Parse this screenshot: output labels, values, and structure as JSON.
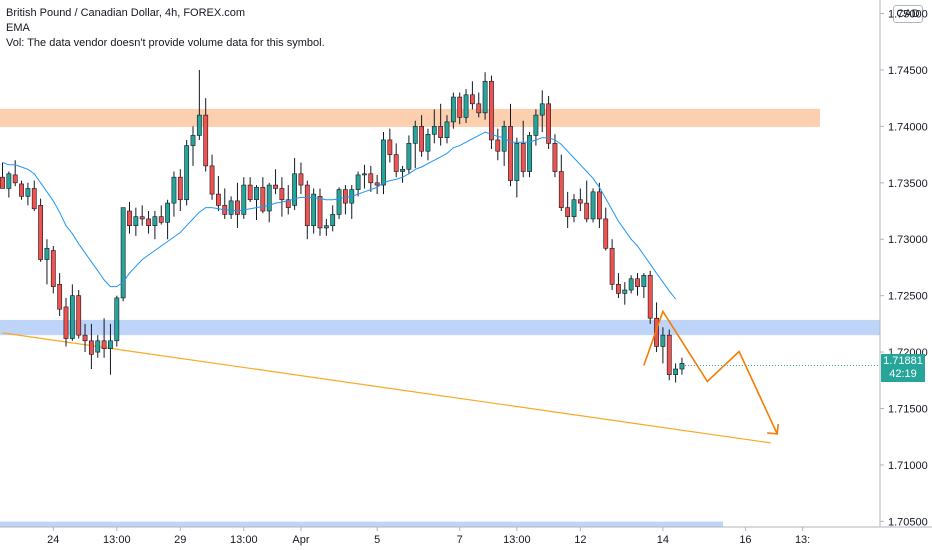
{
  "header": {
    "title": "British Pound / Canadian Dollar, 4h, FOREX.com",
    "indicator": "EMA",
    "volume_note": "Vol: The data vendor doesn't provide volume data for this symbol."
  },
  "currency_label": "CAD",
  "current_price": {
    "price": "1.71881",
    "countdown": "42:19"
  },
  "colors": {
    "up": "#26a69a",
    "down": "#ef5350",
    "wick": "#131722",
    "ema": "#2196f3",
    "resistance_zone": "#fbc8a0",
    "support_zone": "#b3cdf8",
    "trendline": "#f9a825",
    "projection": "#f57c00"
  },
  "chart_data": {
    "type": "candlestick",
    "y_axis": {
      "range": [
        1.7045,
        1.7512
      ],
      "ticks": [
        "1.75000",
        "1.74500",
        "1.74000",
        "1.73500",
        "1.73000",
        "1.72500",
        "1.72000",
        "1.71500",
        "1.71000",
        "1.70500"
      ],
      "tick_values": [
        1.75,
        1.745,
        1.74,
        1.735,
        1.73,
        1.725,
        1.72,
        1.715,
        1.71,
        1.705
      ]
    },
    "x_axis": {
      "labels": [
        "24",
        "13:00",
        "29",
        "13:00",
        "Apr",
        "5",
        "7",
        "13:00",
        "12",
        "14",
        "16",
        "13:"
      ],
      "label_bar_index": [
        8,
        18,
        28,
        38,
        47,
        59,
        72,
        81,
        91,
        104,
        117,
        126
      ]
    },
    "candles": [
      [
        1.7355,
        1.7368,
        1.7345,
        1.7345
      ],
      [
        1.7345,
        1.736,
        1.7337,
        1.7358
      ],
      [
        1.7357,
        1.737,
        1.7347,
        1.735
      ],
      [
        1.7349,
        1.7352,
        1.7335,
        1.7338
      ],
      [
        1.7338,
        1.735,
        1.733,
        1.7345
      ],
      [
        1.7345,
        1.7352,
        1.7325,
        1.7327
      ],
      [
        1.733,
        1.7336,
        1.728,
        1.7282
      ],
      [
        1.7282,
        1.73,
        1.726,
        1.7292
      ],
      [
        1.729,
        1.7294,
        1.7252,
        1.7258
      ],
      [
        1.726,
        1.727,
        1.7232,
        1.7238
      ],
      [
        1.724,
        1.7248,
        1.7205,
        1.7212
      ],
      [
        1.7212,
        1.726,
        1.721,
        1.725
      ],
      [
        1.725,
        1.7255,
        1.7212,
        1.7215
      ],
      [
        1.7215,
        1.7225,
        1.72,
        1.721
      ],
      [
        1.721,
        1.7225,
        1.7185,
        1.7198
      ],
      [
        1.72,
        1.7215,
        1.7195,
        1.721
      ],
      [
        1.721,
        1.723,
        1.7195,
        1.7203
      ],
      [
        1.7203,
        1.7225,
        1.718,
        1.721
      ],
      [
        1.721,
        1.725,
        1.7205,
        1.7248
      ],
      [
        1.7248,
        1.7328,
        1.7245,
        1.7328
      ],
      [
        1.7325,
        1.7333,
        1.7305,
        1.7312
      ],
      [
        1.7312,
        1.7328,
        1.7303,
        1.732
      ],
      [
        1.732,
        1.733,
        1.7312,
        1.7318
      ],
      [
        1.7318,
        1.7325,
        1.7305,
        1.7312
      ],
      [
        1.7312,
        1.7325,
        1.73,
        1.732
      ],
      [
        1.732,
        1.733,
        1.7313,
        1.7315
      ],
      [
        1.7315,
        1.7335,
        1.73,
        1.7332
      ],
      [
        1.7332,
        1.736,
        1.732,
        1.7355
      ],
      [
        1.7355,
        1.7362,
        1.7325,
        1.7335
      ],
      [
        1.7335,
        1.7388,
        1.733,
        1.7383
      ],
      [
        1.7383,
        1.74,
        1.7365,
        1.7392
      ],
      [
        1.7392,
        1.745,
        1.7388,
        1.741
      ],
      [
        1.741,
        1.7425,
        1.736,
        1.7365
      ],
      [
        1.7365,
        1.7375,
        1.7335,
        1.734
      ],
      [
        1.734,
        1.7356,
        1.7325,
        1.733
      ],
      [
        1.733,
        1.7345,
        1.7318,
        1.7322
      ],
      [
        1.7322,
        1.7338,
        1.7318,
        1.7334
      ],
      [
        1.7334,
        1.735,
        1.731,
        1.7322
      ],
      [
        1.7322,
        1.7355,
        1.7318,
        1.7348
      ],
      [
        1.7348,
        1.7355,
        1.7333,
        1.7335
      ],
      [
        1.7335,
        1.7348,
        1.7317,
        1.7346
      ],
      [
        1.7346,
        1.7355,
        1.7323,
        1.7325
      ],
      [
        1.7325,
        1.735,
        1.7315,
        1.7348
      ],
      [
        1.7348,
        1.7362,
        1.734,
        1.7345
      ],
      [
        1.7345,
        1.7355,
        1.732,
        1.7335
      ],
      [
        1.7335,
        1.7348,
        1.7322,
        1.7328
      ],
      [
        1.733,
        1.7372,
        1.7326,
        1.7358
      ],
      [
        1.7358,
        1.7368,
        1.734,
        1.7348
      ],
      [
        1.7348,
        1.7352,
        1.73,
        1.7312
      ],
      [
        1.7312,
        1.7345,
        1.7305,
        1.734
      ],
      [
        1.7338,
        1.7345,
        1.7303,
        1.731
      ],
      [
        1.731,
        1.7318,
        1.7303,
        1.7312
      ],
      [
        1.7312,
        1.733,
        1.7307,
        1.7322
      ],
      [
        1.7322,
        1.7346,
        1.7318,
        1.7344
      ],
      [
        1.7344,
        1.7348,
        1.7322,
        1.7332
      ],
      [
        1.7332,
        1.7348,
        1.7318,
        1.7344
      ],
      [
        1.7344,
        1.736,
        1.7338,
        1.7357
      ],
      [
        1.7357,
        1.7366,
        1.7345,
        1.7358
      ],
      [
        1.7358,
        1.7365,
        1.7342,
        1.735
      ],
      [
        1.735,
        1.7357,
        1.734,
        1.7348
      ],
      [
        1.7348,
        1.7395,
        1.734,
        1.7388
      ],
      [
        1.7388,
        1.7398,
        1.7368,
        1.7375
      ],
      [
        1.7375,
        1.7385,
        1.7355,
        1.736
      ],
      [
        1.736,
        1.7365,
        1.735,
        1.7362
      ],
      [
        1.7362,
        1.7392,
        1.7358,
        1.7385
      ],
      [
        1.7385,
        1.7405,
        1.7363,
        1.74
      ],
      [
        1.74,
        1.741,
        1.7373,
        1.7378
      ],
      [
        1.7378,
        1.7398,
        1.737,
        1.7393
      ],
      [
        1.7393,
        1.7415,
        1.7385,
        1.74
      ],
      [
        1.74,
        1.742,
        1.7383,
        1.739
      ],
      [
        1.739,
        1.741,
        1.7385,
        1.7404
      ],
      [
        1.7404,
        1.743,
        1.7398,
        1.7426
      ],
      [
        1.7426,
        1.743,
        1.7402,
        1.7408
      ],
      [
        1.7408,
        1.7433,
        1.7403,
        1.7428
      ],
      [
        1.7428,
        1.744,
        1.7415,
        1.742
      ],
      [
        1.742,
        1.743,
        1.7408,
        1.7412
      ],
      [
        1.7412,
        1.7448,
        1.7406,
        1.744
      ],
      [
        1.744,
        1.7445,
        1.738,
        1.7388
      ],
      [
        1.7388,
        1.7398,
        1.737,
        1.7378
      ],
      [
        1.7378,
        1.7405,
        1.7365,
        1.74
      ],
      [
        1.74,
        1.742,
        1.7347,
        1.7352
      ],
      [
        1.7352,
        1.739,
        1.7337,
        1.7385
      ],
      [
        1.7385,
        1.7405,
        1.7355,
        1.736
      ],
      [
        1.736,
        1.7395,
        1.7355,
        1.7392
      ],
      [
        1.7392,
        1.7415,
        1.7383,
        1.741
      ],
      [
        1.741,
        1.7432,
        1.7395,
        1.742
      ],
      [
        1.742,
        1.7427,
        1.738,
        1.7385
      ],
      [
        1.7385,
        1.7393,
        1.7355,
        1.736
      ],
      [
        1.736,
        1.7375,
        1.7325,
        1.7328
      ],
      [
        1.7328,
        1.7342,
        1.731,
        1.732
      ],
      [
        1.732,
        1.734,
        1.7315,
        1.7335
      ],
      [
        1.7335,
        1.7345,
        1.7325,
        1.7332
      ],
      [
        1.7332,
        1.7352,
        1.7315,
        1.7318
      ],
      [
        1.7318,
        1.7345,
        1.7315,
        1.7342
      ],
      [
        1.7342,
        1.735,
        1.731,
        1.7318
      ],
      [
        1.7318,
        1.7328,
        1.729,
        1.7292
      ],
      [
        1.7292,
        1.73,
        1.7255,
        1.726
      ],
      [
        1.726,
        1.727,
        1.7248,
        1.7252
      ],
      [
        1.7252,
        1.7262,
        1.7242,
        1.7255
      ],
      [
        1.7255,
        1.7268,
        1.7252,
        1.7265
      ],
      [
        1.7265,
        1.727,
        1.725,
        1.7258
      ],
      [
        1.7258,
        1.727,
        1.7248,
        1.7268
      ],
      [
        1.7268,
        1.7272,
        1.7225,
        1.723
      ],
      [
        1.723,
        1.7244,
        1.72,
        1.7205
      ],
      [
        1.7205,
        1.7222,
        1.719,
        1.7215
      ],
      [
        1.7215,
        1.722,
        1.7175,
        1.718
      ],
      [
        1.718,
        1.719,
        1.7173,
        1.7185
      ],
      [
        1.7185,
        1.7195,
        1.718,
        1.719
      ]
    ],
    "ema": [
      1.7368,
      1.7366,
      1.7366,
      1.7364,
      1.7362,
      1.7358,
      1.735,
      1.7342,
      1.7334,
      1.7324,
      1.7312,
      1.7305,
      1.7296,
      1.7288,
      1.728,
      1.7272,
      1.7264,
      1.7258,
      1.7258,
      1.7262,
      1.727,
      1.7276,
      1.7282,
      1.7286,
      1.729,
      1.7294,
      1.7298,
      1.7302,
      1.7306,
      1.7312,
      1.7318,
      1.7324,
      1.7328,
      1.7328,
      1.7327,
      1.7326,
      1.7326,
      1.7325,
      1.7326,
      1.7327,
      1.7328,
      1.7329,
      1.733,
      1.7332,
      1.7333,
      1.7334,
      1.7336,
      1.7337,
      1.7337,
      1.7337,
      1.7336,
      1.7335,
      1.7335,
      1.7336,
      1.7337,
      1.7338,
      1.734,
      1.7342,
      1.7344,
      1.7346,
      1.735,
      1.7352,
      1.7353,
      1.7355,
      1.7358,
      1.7362,
      1.7364,
      1.7367,
      1.737,
      1.7373,
      1.7376,
      1.7381,
      1.7383,
      1.7386,
      1.7389,
      1.7392,
      1.7395,
      1.7393,
      1.7391,
      1.739,
      1.7386,
      1.7386,
      1.7386,
      1.7386,
      1.7388,
      1.739,
      1.739,
      1.7388,
      1.7384,
      1.7378,
      1.7372,
      1.7366,
      1.736,
      1.7354,
      1.7346,
      1.7336,
      1.7326,
      1.7316,
      1.7308,
      1.73,
      1.7294,
      1.7286,
      1.7278,
      1.727,
      1.7262,
      1.7254,
      1.7247
    ],
    "resistance_zone": [
      1.74155,
      1.73995
    ],
    "support_zone": [
      1.72285,
      1.7215
    ],
    "trendline": {
      "start": [
        0,
        1.7217
      ],
      "end": [
        121,
        1.71195
      ]
    },
    "projection": [
      [
        101,
        1.71881
      ],
      [
        104,
        1.7236
      ],
      [
        111,
        1.7174
      ],
      [
        116,
        1.72005
      ],
      [
        122,
        1.71275
      ]
    ],
    "bottom_band": 1.7048
  }
}
